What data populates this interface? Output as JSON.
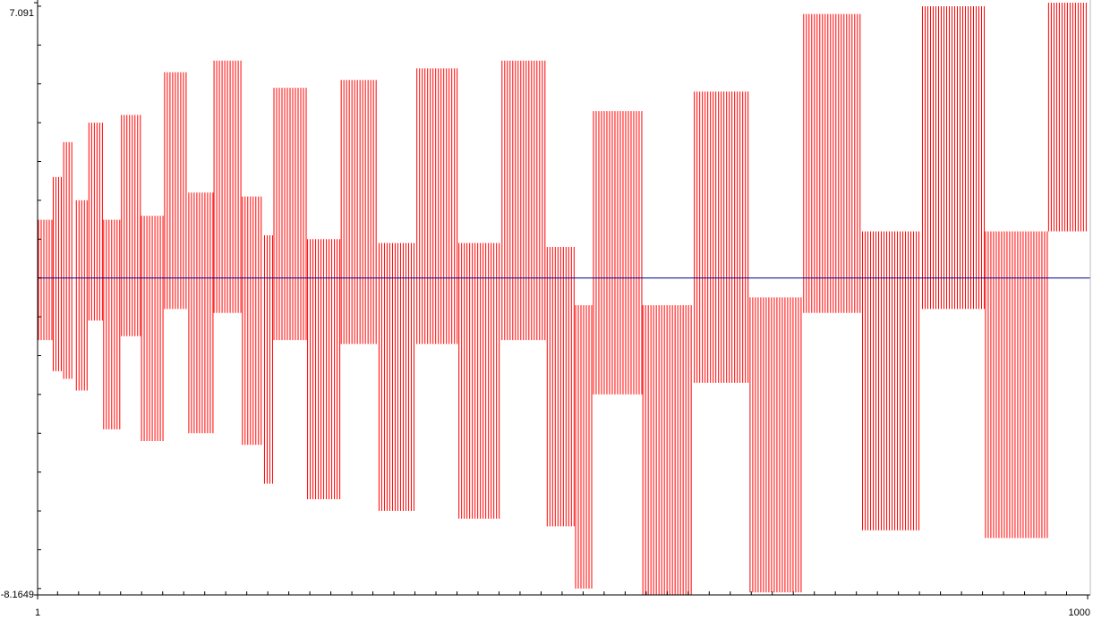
{
  "chart_data": {
    "type": "band",
    "x_start": [
      1,
      15,
      25,
      37,
      49,
      63,
      80,
      99,
      121,
      144,
      168,
      195,
      216,
      225,
      257,
      289,
      325,
      361,
      401,
      442,
      485,
      512,
      529,
      576,
      625,
      678,
      729,
      785,
      842,
      902,
      962
    ],
    "x_end": [
      15,
      25,
      35,
      49,
      63,
      80,
      99,
      121,
      144,
      168,
      195,
      216,
      225,
      257,
      289,
      325,
      361,
      401,
      442,
      485,
      512,
      529,
      576,
      625,
      678,
      729,
      785,
      842,
      902,
      962,
      1000
    ],
    "high": [
      1.5,
      2.6,
      3.5,
      2.0,
      4.0,
      1.5,
      4.2,
      1.6,
      5.3,
      2.2,
      5.6,
      2.1,
      1.1,
      4.9,
      1.0,
      5.1,
      0.9,
      5.4,
      0.9,
      5.6,
      0.8,
      -0.7,
      4.3,
      -0.7,
      4.8,
      -0.5,
      6.8,
      1.2,
      7.0,
      1.2,
      7.091
    ],
    "low": [
      -1.6,
      -2.4,
      -2.6,
      -2.9,
      -1.1,
      -3.9,
      -1.5,
      -4.2,
      -0.8,
      -4.0,
      -0.9,
      -4.3,
      -5.3,
      -1.6,
      -5.7,
      -1.7,
      -6.0,
      -1.7,
      -6.2,
      -1.6,
      -6.4,
      -8.0,
      -3.0,
      -8.1649,
      -2.7,
      -8.1,
      -0.9,
      -6.5,
      -0.8,
      -6.7,
      1.2
    ],
    "color": "#ff0000",
    "baseline": 0,
    "baseline_color": "#00008b",
    "xlim": [
      1,
      1000
    ],
    "xticks": [
      1,
      1000
    ],
    "xminor_step": 20,
    "ylim": [
      -8.1649,
      7.091
    ],
    "yticks": [
      -8.1649,
      7.091
    ],
    "yminor_step": 1
  }
}
